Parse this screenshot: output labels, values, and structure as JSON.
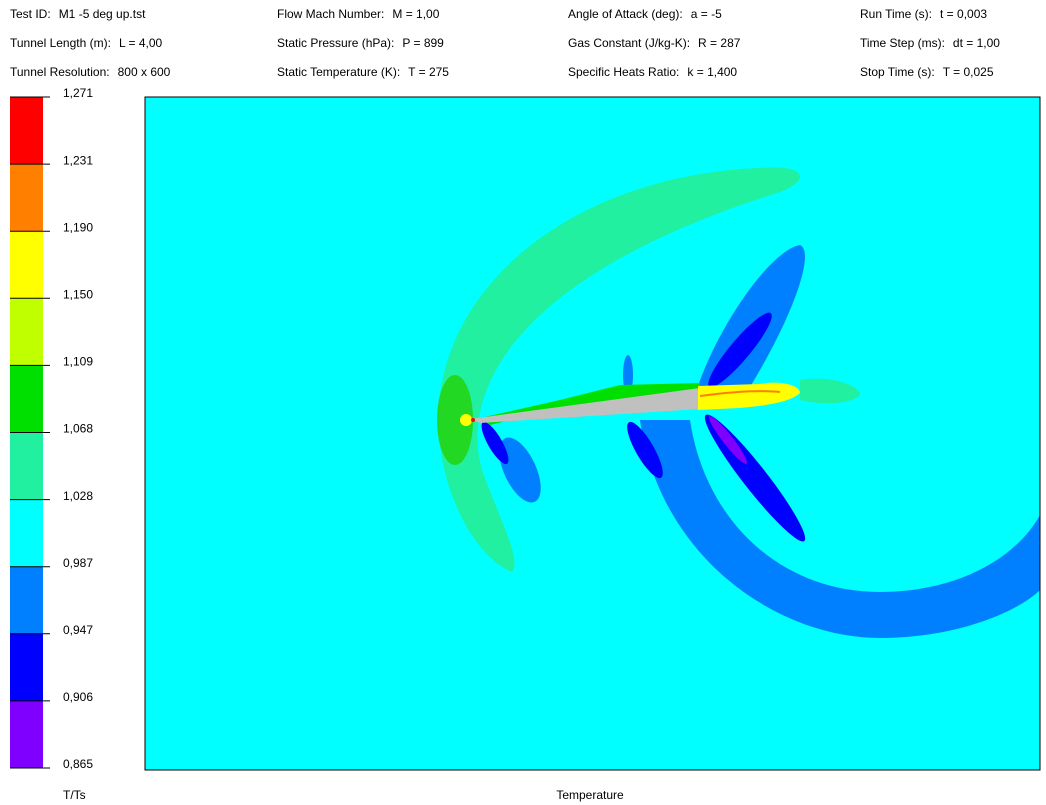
{
  "header": {
    "columns": [
      [
        {
          "label": "Test ID:",
          "value": "M1 -5 deg up.tst"
        },
        {
          "label": "Tunnel Length (m):",
          "value": "L = 4,00"
        },
        {
          "label": "Tunnel Resolution:",
          "value": "800 x 600"
        }
      ],
      [
        {
          "label": "Flow Mach Number:",
          "value": "M = 1,00"
        },
        {
          "label": "Static Pressure (hPa):",
          "value": "P = 899"
        },
        {
          "label": "Static Temperature (K):",
          "value": "T = 275"
        }
      ],
      [
        {
          "label": "Angle of Attack (deg):",
          "value": "a = -5"
        },
        {
          "label": "Gas Constant (J/kg-K):",
          "value": "R = 287"
        },
        {
          "label": "Specific Heats Ratio:",
          "value": "k = 1,400"
        }
      ],
      [
        {
          "label": "Run Time (s):",
          "value": "t = 0,003"
        },
        {
          "label": "Time Step (ms):",
          "value": "dt = 1,00"
        },
        {
          "label": "Stop Time (s):",
          "value": "T = 0,025"
        }
      ]
    ]
  },
  "legend": {
    "title": "T/Ts",
    "ticks": [
      "1,271",
      "1,231",
      "1,190",
      "1,150",
      "1,109",
      "1,068",
      "1,028",
      "0,987",
      "0,947",
      "0,906",
      "0,865"
    ],
    "colors": [
      "#ff0000",
      "#ff8000",
      "#ffff00",
      "#c0ff00",
      "#00e000",
      "#20f0a0",
      "#00ffff",
      "#0080ff",
      "#0000ff",
      "#8000ff"
    ]
  },
  "plot": {
    "label": "Temperature"
  }
}
